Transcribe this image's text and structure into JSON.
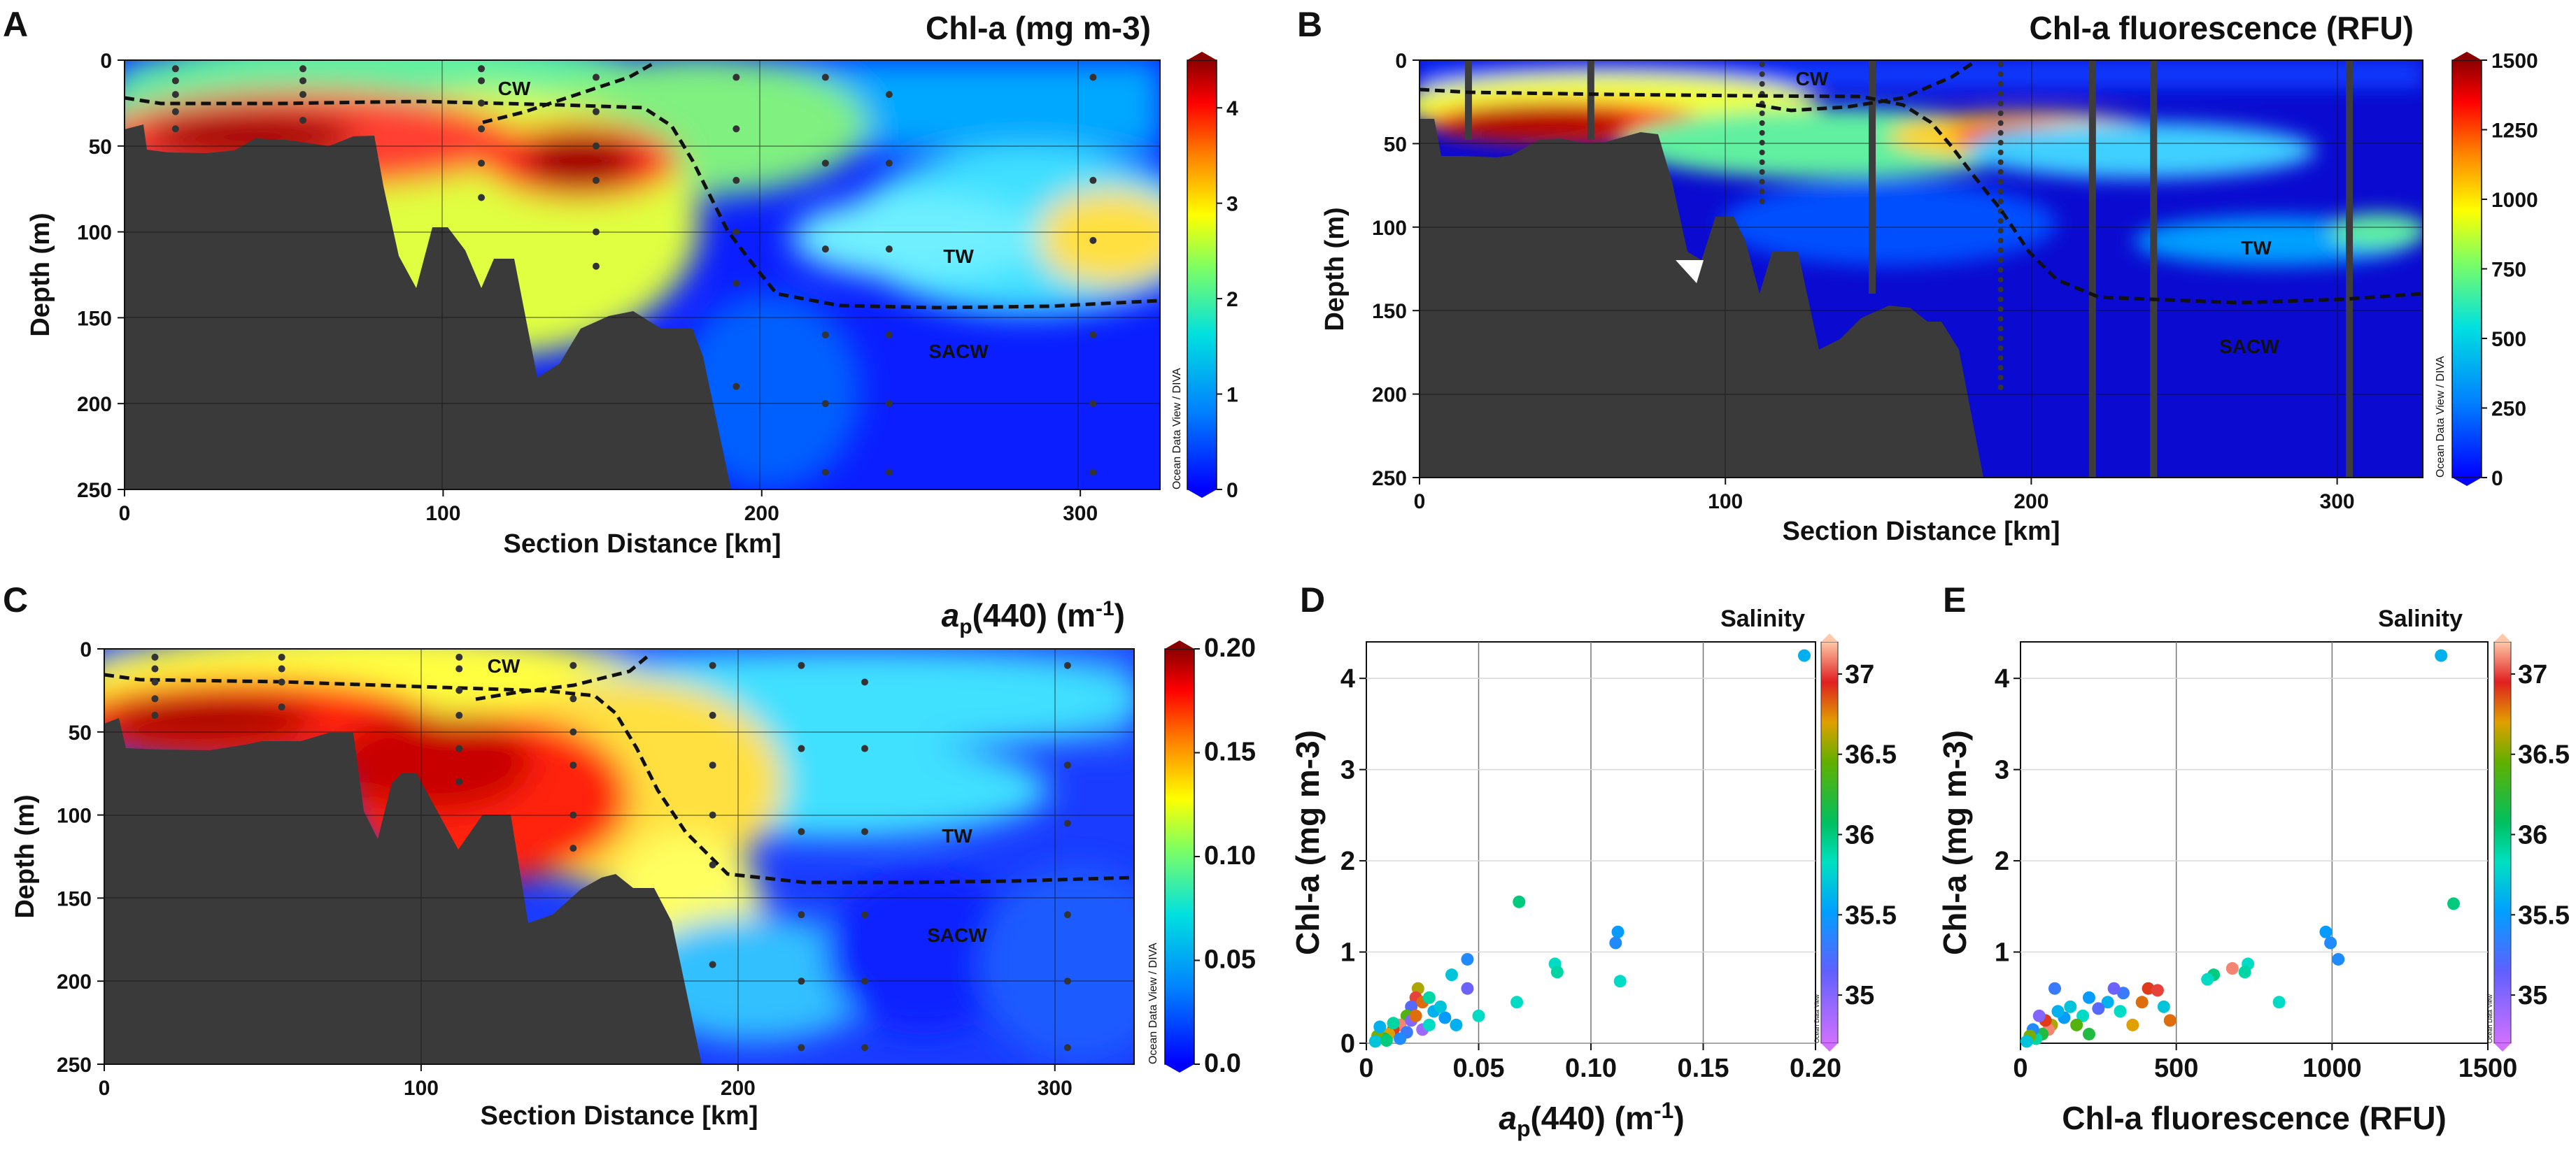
{
  "figure": {
    "panel_labels": [
      "A",
      "B",
      "C",
      "D",
      "E"
    ]
  },
  "chart_data": [
    {
      "panel": "A",
      "type": "heatmap",
      "title": "Chl-a (mg m-3)",
      "xlabel": "Section Distance [km]",
      "ylabel": "Depth (m)",
      "xlim": [
        0,
        325
      ],
      "ylim": [
        250,
        0
      ],
      "xticks": [
        0,
        100,
        200,
        300
      ],
      "yticks": [
        0,
        50,
        100,
        150,
        200,
        250
      ],
      "colorbar": {
        "min": 0,
        "max": 4.5,
        "ticks": [
          0,
          1,
          2,
          3,
          4
        ],
        "label": "Ocean Data View / DIVA"
      },
      "water_masses": [
        "CW",
        "TW",
        "SACW"
      ],
      "stations": [
        {
          "x": 16,
          "depths": [
            5,
            12,
            20,
            30,
            40
          ]
        },
        {
          "x": 56,
          "depths": [
            5,
            12,
            20,
            35
          ]
        },
        {
          "x": 112,
          "depths": [
            5,
            12,
            25,
            40,
            60,
            80
          ]
        },
        {
          "x": 148,
          "depths": [
            10,
            30,
            50,
            70,
            100,
            120
          ]
        },
        {
          "x": 192,
          "depths": [
            10,
            40,
            70,
            100,
            130,
            190
          ]
        },
        {
          "x": 220,
          "depths": [
            10,
            60,
            110,
            160,
            200,
            240
          ]
        },
        {
          "x": 240,
          "depths": [
            20,
            60,
            110,
            160,
            200,
            240
          ]
        },
        {
          "x": 304,
          "depths": [
            10,
            70,
            105,
            160,
            200,
            240
          ]
        }
      ]
    },
    {
      "panel": "B",
      "type": "heatmap",
      "title": "Chl-a fluorescence (RFU)",
      "xlabel": "Section Distance [km]",
      "ylabel": "Depth (m)",
      "xlim": [
        0,
        328
      ],
      "ylim": [
        250,
        0
      ],
      "xticks": [
        0,
        100,
        200,
        300
      ],
      "yticks": [
        0,
        50,
        100,
        150,
        200,
        250
      ],
      "colorbar": {
        "min": 0,
        "max": 1500,
        "ticks": [
          0,
          250,
          500,
          750,
          1000,
          1250,
          1500
        ],
        "label": "Ocean Data View / DIVA"
      },
      "water_masses": [
        "CW",
        "TW",
        "SACW"
      ],
      "profile_tracks": [
        16,
        56,
        112,
        148,
        190,
        220,
        240,
        304
      ]
    },
    {
      "panel": "C",
      "type": "heatmap",
      "title": "ap(440) (m-1)",
      "title_parts": {
        "a": "a",
        "sub": "p",
        "rest": "(440) (m",
        "sup": "-1",
        "end": ")"
      },
      "xlabel": "Section Distance [km]",
      "ylabel": "Depth (m)",
      "xlim": [
        0,
        325
      ],
      "ylim": [
        250,
        0
      ],
      "xticks": [
        0,
        100,
        200,
        300
      ],
      "yticks": [
        0,
        50,
        100,
        150,
        200,
        250
      ],
      "colorbar": {
        "min": 0.0,
        "max": 0.2,
        "ticks": [
          "0.0",
          "0.05",
          "0.10",
          "0.15",
          "0.20"
        ],
        "label": "Ocean Data View / DIVA"
      },
      "water_masses": [
        "CW",
        "TW",
        "SACW"
      ]
    },
    {
      "panel": "D",
      "type": "scatter",
      "xlabel": "ap(440) (m-1)",
      "ylabel": "Chl-a (mg m-3)",
      "xlim": [
        0,
        0.2
      ],
      "ylim": [
        0,
        4.4
      ],
      "xticks": [
        "0",
        "0.05",
        "0.10",
        "0.15",
        "0.20"
      ],
      "yticks": [
        0,
        1,
        2,
        3,
        4
      ],
      "colorbar": {
        "title": "Salinity",
        "min": 34.7,
        "max": 37.2,
        "ticks": [
          "35",
          "35.5",
          "36",
          "36.5",
          "37"
        ],
        "label": "Ocean Data View"
      },
      "points": [
        {
          "x": 0.195,
          "y": 4.25,
          "s": 35.6
        },
        {
          "x": 0.068,
          "y": 1.55,
          "s": 36.0
        },
        {
          "x": 0.112,
          "y": 1.22,
          "s": 35.5
        },
        {
          "x": 0.111,
          "y": 1.1,
          "s": 35.4
        },
        {
          "x": 0.113,
          "y": 0.68,
          "s": 35.8
        },
        {
          "x": 0.084,
          "y": 0.87,
          "s": 35.8
        },
        {
          "x": 0.085,
          "y": 0.78,
          "s": 35.9
        },
        {
          "x": 0.045,
          "y": 0.92,
          "s": 35.4
        },
        {
          "x": 0.045,
          "y": 0.6,
          "s": 35.1
        },
        {
          "x": 0.067,
          "y": 0.45,
          "s": 35.8
        },
        {
          "x": 0.038,
          "y": 0.75,
          "s": 35.7
        },
        {
          "x": 0.05,
          "y": 0.3,
          "s": 35.8
        },
        {
          "x": 0.023,
          "y": 0.6,
          "s": 36.6
        },
        {
          "x": 0.022,
          "y": 0.5,
          "s": 37.0
        },
        {
          "x": 0.025,
          "y": 0.45,
          "s": 36.8
        },
        {
          "x": 0.02,
          "y": 0.4,
          "s": 35.2
        },
        {
          "x": 0.03,
          "y": 0.35,
          "s": 35.6
        },
        {
          "x": 0.028,
          "y": 0.5,
          "s": 35.9
        },
        {
          "x": 0.035,
          "y": 0.28,
          "s": 35.5
        },
        {
          "x": 0.033,
          "y": 0.4,
          "s": 35.7
        },
        {
          "x": 0.018,
          "y": 0.3,
          "s": 36.4
        },
        {
          "x": 0.015,
          "y": 0.2,
          "s": 37.1
        },
        {
          "x": 0.012,
          "y": 0.15,
          "s": 36.9
        },
        {
          "x": 0.01,
          "y": 0.1,
          "s": 36.7
        },
        {
          "x": 0.008,
          "y": 0.05,
          "s": 36.2
        },
        {
          "x": 0.005,
          "y": 0.08,
          "s": 36.5
        },
        {
          "x": 0.006,
          "y": 0.18,
          "s": 35.6
        },
        {
          "x": 0.012,
          "y": 0.22,
          "s": 35.9
        },
        {
          "x": 0.018,
          "y": 0.12,
          "s": 35.3
        },
        {
          "x": 0.02,
          "y": 0.25,
          "s": 35.0
        },
        {
          "x": 0.025,
          "y": 0.15,
          "s": 34.9
        },
        {
          "x": 0.015,
          "y": 0.05,
          "s": 35.4
        },
        {
          "x": 0.004,
          "y": 0.02,
          "s": 35.7
        },
        {
          "x": 0.009,
          "y": 0.03,
          "s": 36.0
        },
        {
          "x": 0.022,
          "y": 0.3,
          "s": 36.8
        },
        {
          "x": 0.028,
          "y": 0.2,
          "s": 35.8
        },
        {
          "x": 0.04,
          "y": 0.2,
          "s": 35.6
        }
      ]
    },
    {
      "panel": "E",
      "type": "scatter",
      "xlabel": "Chl-a fluorescence (RFU)",
      "ylabel": "Chl-a (mg m-3)",
      "xlim": [
        0,
        1500
      ],
      "ylim": [
        0,
        4.4
      ],
      "xticks": [
        "0",
        "500",
        "1000",
        "1500"
      ],
      "yticks": [
        1,
        2,
        3,
        4
      ],
      "colorbar": {
        "title": "Salinity",
        "min": 34.7,
        "max": 37.2,
        "ticks": [
          "35",
          "35.5",
          "36",
          "36.5",
          "37"
        ],
        "label": "Ocean Data View"
      },
      "points": [
        {
          "x": 1350,
          "y": 4.25,
          "s": 35.6
        },
        {
          "x": 1390,
          "y": 1.53,
          "s": 36.0
        },
        {
          "x": 980,
          "y": 1.22,
          "s": 35.5
        },
        {
          "x": 995,
          "y": 1.1,
          "s": 35.4
        },
        {
          "x": 1020,
          "y": 0.92,
          "s": 35.4
        },
        {
          "x": 830,
          "y": 0.45,
          "s": 35.8
        },
        {
          "x": 730,
          "y": 0.87,
          "s": 35.8
        },
        {
          "x": 720,
          "y": 0.78,
          "s": 35.9
        },
        {
          "x": 680,
          "y": 0.82,
          "s": 37.1
        },
        {
          "x": 620,
          "y": 0.75,
          "s": 36.0
        },
        {
          "x": 600,
          "y": 0.7,
          "s": 35.8
        },
        {
          "x": 410,
          "y": 0.6,
          "s": 36.9
        },
        {
          "x": 440,
          "y": 0.58,
          "s": 37.0
        },
        {
          "x": 460,
          "y": 0.4,
          "s": 35.7
        },
        {
          "x": 480,
          "y": 0.25,
          "s": 36.8
        },
        {
          "x": 390,
          "y": 0.45,
          "s": 36.8
        },
        {
          "x": 330,
          "y": 0.55,
          "s": 35.3
        },
        {
          "x": 300,
          "y": 0.6,
          "s": 35.1
        },
        {
          "x": 280,
          "y": 0.45,
          "s": 35.6
        },
        {
          "x": 250,
          "y": 0.38,
          "s": 35.2
        },
        {
          "x": 220,
          "y": 0.5,
          "s": 35.5
        },
        {
          "x": 200,
          "y": 0.3,
          "s": 35.8
        },
        {
          "x": 180,
          "y": 0.2,
          "s": 36.4
        },
        {
          "x": 160,
          "y": 0.4,
          "s": 35.7
        },
        {
          "x": 140,
          "y": 0.28,
          "s": 35.5
        },
        {
          "x": 120,
          "y": 0.35,
          "s": 35.6
        },
        {
          "x": 110,
          "y": 0.6,
          "s": 35.3
        },
        {
          "x": 100,
          "y": 0.2,
          "s": 36.6
        },
        {
          "x": 90,
          "y": 0.15,
          "s": 37.1
        },
        {
          "x": 80,
          "y": 0.25,
          "s": 36.9
        },
        {
          "x": 70,
          "y": 0.1,
          "s": 36.2
        },
        {
          "x": 60,
          "y": 0.3,
          "s": 35.0
        },
        {
          "x": 50,
          "y": 0.05,
          "s": 35.9
        },
        {
          "x": 40,
          "y": 0.15,
          "s": 35.4
        },
        {
          "x": 30,
          "y": 0.08,
          "s": 36.5
        },
        {
          "x": 20,
          "y": 0.02,
          "s": 35.7
        },
        {
          "x": 220,
          "y": 0.1,
          "s": 36.2
        },
        {
          "x": 320,
          "y": 0.35,
          "s": 35.8
        },
        {
          "x": 360,
          "y": 0.2,
          "s": 36.7
        }
      ]
    }
  ]
}
